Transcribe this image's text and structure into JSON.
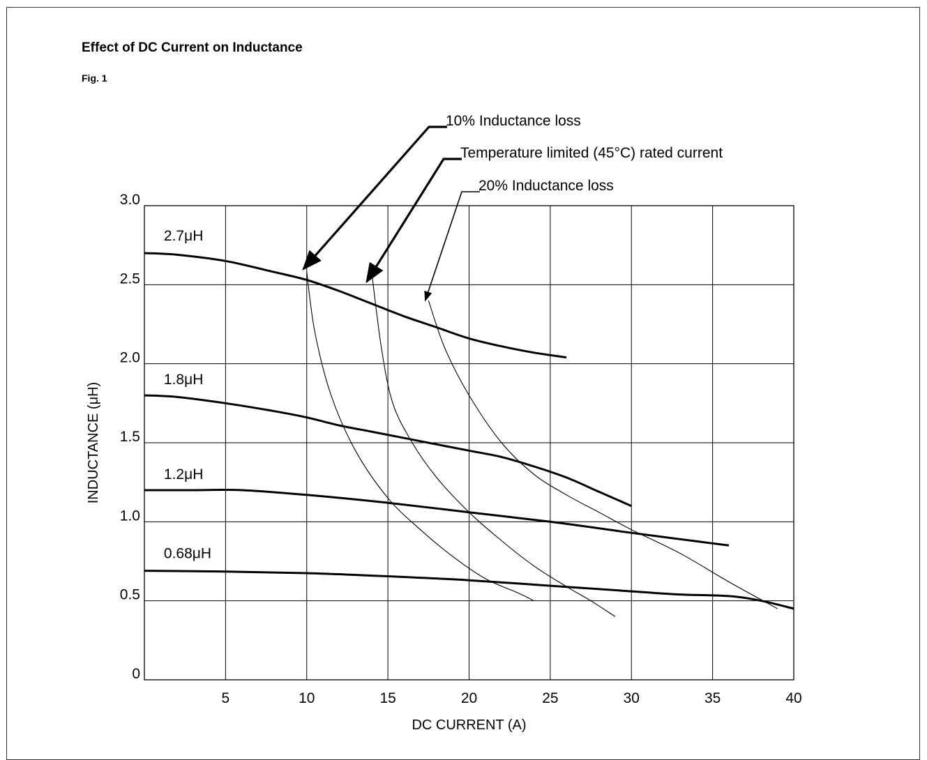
{
  "page": {
    "title": "Effect of DC Current on Inductance",
    "subtitle": "Fig. 1"
  },
  "chart_data": {
    "type": "line",
    "title": "Effect of DC Current on Inductance",
    "xlabel": "DC CURRENT (A)",
    "ylabel": "INDUCTANCE (μH)",
    "xlim": [
      0,
      40
    ],
    "ylim": [
      0,
      3.0
    ],
    "grid": true,
    "x_ticks": [
      {
        "value": 5,
        "label": "5"
      },
      {
        "value": 10,
        "label": "10"
      },
      {
        "value": 15,
        "label": "15"
      },
      {
        "value": 20,
        "label": "20"
      },
      {
        "value": 25,
        "label": "25"
      },
      {
        "value": 30,
        "label": "30"
      },
      {
        "value": 35,
        "label": "35"
      },
      {
        "value": 40,
        "label": "40"
      }
    ],
    "y_ticks": [
      {
        "value": 0,
        "label": "0"
      },
      {
        "value": 0.5,
        "label": "0.5"
      },
      {
        "value": 1.0,
        "label": "1.0"
      },
      {
        "value": 1.5,
        "label": "1.5"
      },
      {
        "value": 2.0,
        "label": "2.0"
      },
      {
        "value": 2.5,
        "label": "2.5"
      },
      {
        "value": 3.0,
        "label": "3.0"
      }
    ],
    "series": [
      {
        "name": "2.7μH",
        "label": "2.7μH",
        "label_at": [
          1.2,
          2.78
        ],
        "points": [
          [
            0,
            2.7
          ],
          [
            2,
            2.69
          ],
          [
            5,
            2.65
          ],
          [
            8,
            2.58
          ],
          [
            10,
            2.53
          ],
          [
            12,
            2.46
          ],
          [
            14,
            2.38
          ],
          [
            16,
            2.3
          ],
          [
            18,
            2.23
          ],
          [
            20,
            2.16
          ],
          [
            22,
            2.11
          ],
          [
            24,
            2.07
          ],
          [
            26,
            2.04
          ]
        ]
      },
      {
        "name": "1.8μH",
        "label": "1.8μH",
        "label_at": [
          1.2,
          1.87
        ],
        "points": [
          [
            0,
            1.8
          ],
          [
            2,
            1.79
          ],
          [
            5,
            1.75
          ],
          [
            8,
            1.7
          ],
          [
            10,
            1.66
          ],
          [
            12,
            1.61
          ],
          [
            14,
            1.57
          ],
          [
            16,
            1.53
          ],
          [
            18,
            1.49
          ],
          [
            20,
            1.45
          ],
          [
            22,
            1.41
          ],
          [
            24,
            1.35
          ],
          [
            26,
            1.28
          ],
          [
            28,
            1.19
          ],
          [
            30,
            1.1
          ]
        ]
      },
      {
        "name": "1.2μH",
        "label": "1.2μH",
        "label_at": [
          1.2,
          1.27
        ],
        "points": [
          [
            0,
            1.2
          ],
          [
            3,
            1.2
          ],
          [
            6,
            1.2
          ],
          [
            10,
            1.17
          ],
          [
            15,
            1.12
          ],
          [
            20,
            1.06
          ],
          [
            25,
            1.0
          ],
          [
            30,
            0.93
          ],
          [
            33,
            0.89
          ],
          [
            36,
            0.85
          ]
        ]
      },
      {
        "name": "0.68μH",
        "label": "0.68μH",
        "label_at": [
          1.2,
          0.77
        ],
        "points": [
          [
            0,
            0.69
          ],
          [
            5,
            0.685
          ],
          [
            10,
            0.675
          ],
          [
            15,
            0.655
          ],
          [
            20,
            0.63
          ],
          [
            25,
            0.595
          ],
          [
            30,
            0.56
          ],
          [
            33,
            0.54
          ],
          [
            36,
            0.53
          ],
          [
            38,
            0.5
          ],
          [
            40,
            0.45
          ]
        ]
      }
    ],
    "threshold_curves": [
      {
        "name": "10% Inductance loss",
        "points": [
          [
            10,
            2.58
          ],
          [
            10.5,
            2.2
          ],
          [
            11.5,
            1.8
          ],
          [
            13,
            1.45
          ],
          [
            15,
            1.15
          ],
          [
            17,
            0.95
          ],
          [
            19,
            0.78
          ],
          [
            21,
            0.64
          ],
          [
            23,
            0.55
          ],
          [
            24,
            0.5
          ]
        ]
      },
      {
        "name": "Temperature limited (45°C) rated current",
        "points": [
          [
            14,
            2.58
          ],
          [
            14.6,
            2.1
          ],
          [
            15.3,
            1.75
          ],
          [
            16.5,
            1.5
          ],
          [
            18,
            1.28
          ],
          [
            20,
            1.06
          ],
          [
            22,
            0.88
          ],
          [
            24,
            0.72
          ],
          [
            26,
            0.59
          ],
          [
            27.5,
            0.5
          ],
          [
            29,
            0.4
          ]
        ]
      },
      {
        "name": "20% Inductance loss",
        "points": [
          [
            17.5,
            2.4
          ],
          [
            18.5,
            2.1
          ],
          [
            20,
            1.8
          ],
          [
            22,
            1.5
          ],
          [
            24,
            1.3
          ],
          [
            26,
            1.17
          ],
          [
            28,
            1.06
          ],
          [
            30,
            0.95
          ],
          [
            33,
            0.8
          ],
          [
            36,
            0.62
          ],
          [
            39,
            0.45
          ]
        ]
      }
    ],
    "annotations": [
      {
        "text": "10% Inductance loss",
        "target": [
          9.8,
          2.6
        ]
      },
      {
        "text": "Temperature limited (45°C) rated current",
        "target": [
          13.7,
          2.52
        ]
      },
      {
        "text": "20% Inductance loss",
        "target": [
          17.3,
          2.4
        ]
      }
    ]
  }
}
